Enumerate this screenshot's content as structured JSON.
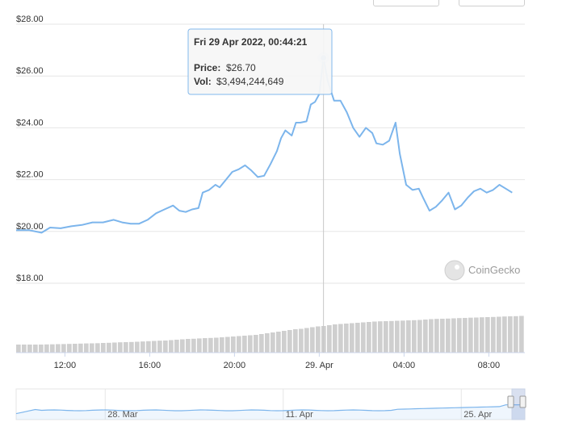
{
  "controls": {
    "left_button": "",
    "right_button": ""
  },
  "chart_data": {
    "type": "line",
    "ylim": [
      17.0,
      28.0
    ],
    "y_ticks": [
      "$28.00",
      "$26.00",
      "$24.00",
      "$22.00",
      "$20.00",
      "$18.00"
    ],
    "y_tick_values": [
      28,
      26,
      24,
      22,
      20,
      18
    ],
    "x_ticks": [
      "12:00",
      "16:00",
      "20:00",
      "29. Apr",
      "04:00",
      "08:00"
    ],
    "x_tick_hours": [
      12,
      16,
      20,
      24,
      28,
      32
    ],
    "xlim_hours": [
      9.7,
      33.7
    ],
    "series": [
      {
        "values": [
          [
            9.7,
            20.05
          ],
          [
            10.3,
            20.05
          ],
          [
            10.9,
            19.95
          ],
          [
            11.3,
            20.15
          ],
          [
            11.8,
            20.12
          ],
          [
            12.3,
            20.2
          ],
          [
            12.8,
            20.25
          ],
          [
            13.3,
            20.35
          ],
          [
            13.8,
            20.35
          ],
          [
            14.3,
            20.45
          ],
          [
            14.7,
            20.35
          ],
          [
            15.1,
            20.3
          ],
          [
            15.5,
            20.3
          ],
          [
            15.9,
            20.45
          ],
          [
            16.3,
            20.7
          ],
          [
            16.7,
            20.85
          ],
          [
            17.1,
            21.0
          ],
          [
            17.4,
            20.8
          ],
          [
            17.7,
            20.75
          ],
          [
            18.0,
            20.85
          ],
          [
            18.3,
            20.9
          ],
          [
            18.5,
            21.5
          ],
          [
            18.8,
            21.6
          ],
          [
            19.1,
            21.8
          ],
          [
            19.3,
            21.7
          ],
          [
            19.6,
            22.0
          ],
          [
            19.9,
            22.3
          ],
          [
            20.2,
            22.4
          ],
          [
            20.5,
            22.55
          ],
          [
            20.8,
            22.35
          ],
          [
            21.1,
            22.1
          ],
          [
            21.4,
            22.15
          ],
          [
            21.7,
            22.6
          ],
          [
            22.0,
            23.1
          ],
          [
            22.2,
            23.6
          ],
          [
            22.4,
            23.9
          ],
          [
            22.7,
            23.7
          ],
          [
            22.9,
            24.2
          ],
          [
            23.1,
            24.2
          ],
          [
            23.4,
            24.25
          ],
          [
            23.6,
            24.9
          ],
          [
            23.8,
            25.0
          ],
          [
            24.0,
            25.3
          ],
          [
            24.2,
            26.7
          ],
          [
            24.4,
            25.8
          ],
          [
            24.7,
            25.05
          ],
          [
            25.0,
            25.05
          ],
          [
            25.3,
            24.6
          ],
          [
            25.6,
            24.0
          ],
          [
            25.9,
            23.65
          ],
          [
            26.2,
            24.0
          ],
          [
            26.5,
            23.8
          ],
          [
            26.7,
            23.4
          ],
          [
            27.0,
            23.35
          ],
          [
            27.3,
            23.5
          ],
          [
            27.6,
            24.2
          ],
          [
            27.8,
            23.0
          ],
          [
            28.1,
            21.8
          ],
          [
            28.4,
            21.6
          ],
          [
            28.7,
            21.65
          ],
          [
            28.9,
            21.3
          ],
          [
            29.2,
            20.8
          ],
          [
            29.5,
            20.95
          ],
          [
            29.8,
            21.2
          ],
          [
            30.1,
            21.5
          ],
          [
            30.4,
            20.85
          ],
          [
            30.7,
            21.0
          ],
          [
            31.0,
            21.3
          ],
          [
            31.3,
            21.55
          ],
          [
            31.6,
            21.65
          ],
          [
            31.9,
            21.5
          ],
          [
            32.2,
            21.6
          ],
          [
            32.5,
            21.8
          ],
          [
            32.8,
            21.65
          ],
          [
            33.1,
            21.5
          ]
        ]
      }
    ],
    "volume_bars": [
      1.0,
      1.0,
      1.0,
      1.0,
      1.0,
      1.02,
      1.03,
      1.05,
      1.06,
      1.08,
      1.1,
      1.12,
      1.14,
      1.15,
      1.17,
      1.2,
      1.22,
      1.25,
      1.28,
      1.3,
      1.32,
      1.35,
      1.38,
      1.42,
      1.45,
      1.48,
      1.5,
      1.55,
      1.6,
      1.65,
      1.7,
      1.72,
      1.76,
      1.8,
      1.82,
      1.85,
      1.9,
      1.95,
      2.0,
      2.05,
      2.1,
      2.15,
      2.2,
      2.3,
      2.4,
      2.5,
      2.6,
      2.7,
      2.8,
      2.9,
      2.95,
      3.05,
      3.15,
      3.25,
      3.3,
      3.4,
      3.5,
      3.55,
      3.6,
      3.65,
      3.7,
      3.75,
      3.8,
      3.85,
      3.88,
      3.9,
      3.92,
      3.95,
      3.97,
      4.0,
      4.02,
      4.05,
      4.1,
      4.15,
      4.18,
      4.2,
      4.22,
      4.25,
      4.28,
      4.3,
      4.33,
      4.35,
      4.38,
      4.4,
      4.42,
      4.45,
      4.48,
      4.5,
      4.52,
      4.55
    ],
    "highlight": {
      "hour": 24.2,
      "value": 26.7
    },
    "tooltip": {
      "date": "Fri 29 Apr 2022, 00:44:21",
      "price_label": "Price:",
      "price_value": "$26.70",
      "vol_label": "Vol:",
      "vol_value": "$3,494,244,649"
    },
    "watermark": "CoinGecko",
    "navigator": {
      "ticks": [
        "28. Mar",
        "11. Apr",
        "25. Apr"
      ],
      "tick_days": [
        7,
        21,
        35
      ]
    }
  }
}
